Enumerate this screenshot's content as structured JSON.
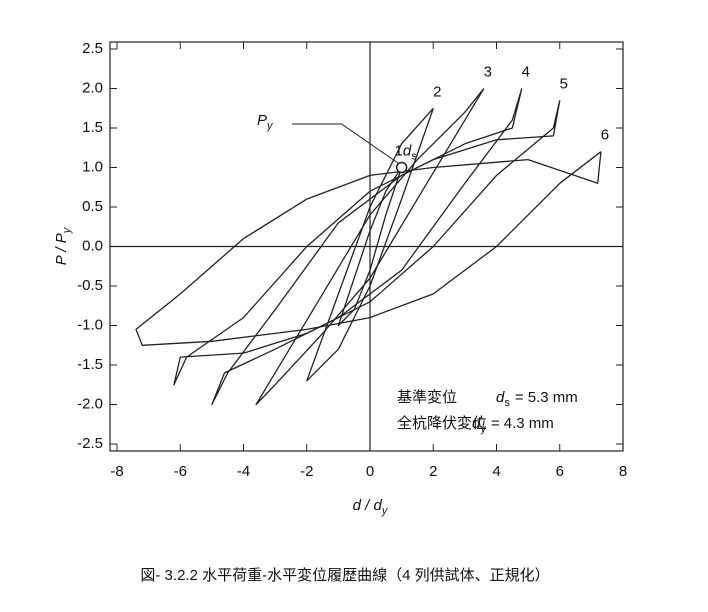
{
  "chart_data": {
    "type": "line",
    "xlabel": {
      "text": "d / d",
      "sub": "y"
    },
    "ylabel": {
      "text": "P / P",
      "sub": "y"
    },
    "caption": "図- 3.2.2  水平荷重-水平変位履歴曲線（4 列供試体、正規化）",
    "xlim": [
      -8,
      8
    ],
    "xticks": [
      -8,
      -6,
      -4,
      -2,
      0,
      2,
      4,
      6,
      8
    ],
    "ylim": [
      -2.5,
      2.5
    ],
    "yticks": [
      2.5,
      {
        "value": 2,
        "label": "2.0"
      },
      1.5,
      {
        "value": 1,
        "label": "1.0"
      },
      0.5,
      {
        "value": 0,
        "label": "0.0"
      },
      -0.5,
      {
        "value": -1,
        "label": "-1.0"
      },
      -1.5,
      {
        "value": -2,
        "label": "-2.0"
      },
      -2.5
    ],
    "color": "#222222",
    "series": [
      {
        "name": "1",
        "name_var": "d",
        "name_sub": "s",
        "x": [
          1,
          0.5,
          0,
          -0.5,
          -1,
          -0.5,
          0,
          0.5,
          1
        ],
        "values": [
          1.0,
          0.7,
          0.2,
          -0.4,
          -1.0,
          -0.8,
          -0.3,
          0.4,
          1.0
        ]
      },
      {
        "name": "2",
        "x": [
          2,
          1,
          0,
          -1,
          -2,
          -1,
          0,
          1,
          2
        ],
        "values": [
          1.75,
          1.3,
          0.5,
          -0.6,
          -1.7,
          -1.3,
          -0.5,
          0.6,
          1.75
        ]
      },
      {
        "name": "3",
        "x": [
          3.6,
          3,
          1.5,
          0,
          -1.5,
          -3,
          -3.6,
          -3,
          -1.5,
          0,
          1.5,
          3,
          3.6
        ],
        "values": [
          2.0,
          1.7,
          1.1,
          0.4,
          -0.6,
          -1.6,
          -2.0,
          -1.75,
          -1.1,
          -0.4,
          0.6,
          1.6,
          2.0
        ]
      },
      {
        "name": "4",
        "x": [
          4.8,
          4.5,
          3,
          1,
          -1,
          -3,
          -4.5,
          -5,
          -4.6,
          -3,
          -1,
          1,
          3,
          4.5,
          4.8
        ],
        "values": [
          2.0,
          1.5,
          1.3,
          0.9,
          0.3,
          -0.8,
          -1.6,
          -2.0,
          -1.6,
          -1.3,
          -0.9,
          -0.3,
          0.8,
          1.6,
          2.0
        ]
      },
      {
        "name": "5",
        "x": [
          6,
          5.8,
          4,
          2,
          0,
          -2,
          -4,
          -5.8,
          -6.2,
          -6,
          -4,
          -2,
          0,
          2,
          4,
          5.8,
          6
        ],
        "values": [
          1.85,
          1.4,
          1.35,
          1.1,
          0.7,
          0.0,
          -0.9,
          -1.4,
          -1.75,
          -1.4,
          -1.35,
          -1.1,
          -0.7,
          0.0,
          0.9,
          1.5,
          1.85
        ]
      },
      {
        "name": "6",
        "x": [
          7.3,
          7.2,
          5,
          2,
          0,
          -2,
          -4,
          -6,
          -7.4,
          -7.2,
          -5,
          -2,
          0,
          2,
          4,
          6,
          7.3
        ],
        "values": [
          1.2,
          0.8,
          1.1,
          1.0,
          0.9,
          0.6,
          0.1,
          -0.6,
          -1.05,
          -1.25,
          -1.2,
          -1.05,
          -0.9,
          -0.6,
          0.0,
          0.8,
          1.2
        ]
      }
    ],
    "yield_point": {
      "x": 1,
      "y": 1,
      "label": "P",
      "sub": "y"
    },
    "notes": [
      {
        "label": "基準変位",
        "var": "d",
        "sub": "s",
        "value_text": "= 5.3 mm"
      },
      {
        "label": "全杭降伏変位",
        "var": "d",
        "sub": "y",
        "value_text": "= 4.3 mm"
      }
    ]
  }
}
